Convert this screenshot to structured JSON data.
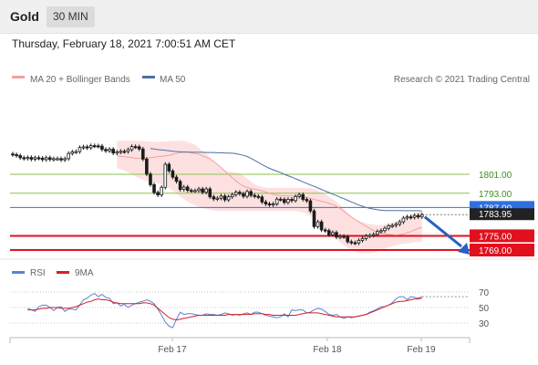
{
  "header": {
    "instrument": "Gold",
    "timeframe": "30 MIN"
  },
  "timestamp": "Thursday, February 18, 2021 7:00:51 AM CET",
  "legend": {
    "ma_bb": "MA 20 + Bollinger Bands",
    "ma50": "MA 50",
    "rsi": "RSI",
    "rsi_ma": "9MA"
  },
  "credit": "Research © 2021 Trading Central",
  "colors": {
    "resistance": "#8bc34a",
    "support": "#e0101d",
    "pivot": "#2f6fe0",
    "ma50": "#4d6fa5",
    "bb": "#f5a0a0",
    "rsi": "#5b82d6",
    "rsi_ma": "#d42020",
    "candle": "#1a1a1a"
  },
  "chart_data": {
    "type": "candlestick",
    "x_ticks": [
      "Feb 17",
      "Feb 18",
      "Feb 19"
    ],
    "ylim": [
      1762,
      1820
    ],
    "levels": [
      {
        "label": "1801.00",
        "value": 1801,
        "kind": "resistance"
      },
      {
        "label": "1793.00",
        "value": 1793,
        "kind": "resistance"
      },
      {
        "label": "1787.00",
        "value": 1787,
        "kind": "pivot"
      },
      {
        "label": "1775.00",
        "value": 1775,
        "kind": "support"
      },
      {
        "label": "1769.00",
        "value": 1769,
        "kind": "support"
      }
    ],
    "last_price": {
      "label": "1783.95",
      "value": 1783.95
    },
    "arrow": {
      "direction": "down",
      "from": 1783,
      "to": 1769
    },
    "close": [
      1809.3,
      1808.9,
      1808.0,
      1807.7,
      1808.1,
      1807.4,
      1808.0,
      1807.8,
      1807.2,
      1808.0,
      1807.3,
      1807.6,
      1807.6,
      1807.1,
      1807.6,
      1809.8,
      1810.5,
      1810.6,
      1812.3,
      1812.6,
      1812.2,
      1813.1,
      1813.0,
      1812.9,
      1811.5,
      1810.9,
      1811.6,
      1810.0,
      1810.4,
      1810.7,
      1810.6,
      1811.4,
      1812.7,
      1812.6,
      1811.7,
      1807.4,
      1801.1,
      1796.6,
      1793.3,
      1792.3,
      1795.5,
      1805.2,
      1802.4,
      1799.8,
      1798.0,
      1794.6,
      1795.6,
      1794.2,
      1794.1,
      1794.1,
      1794.8,
      1793.4,
      1794.8,
      1791.5,
      1790.6,
      1790.9,
      1791.8,
      1790.2,
      1791.5,
      1792.4,
      1793.4,
      1792.8,
      1791.7,
      1793.7,
      1792.1,
      1791.7,
      1791.4,
      1789.3,
      1788.5,
      1788.1,
      1788.5,
      1790.5,
      1790.4,
      1789.1,
      1790.4,
      1789.9,
      1791.6,
      1792.4,
      1790.4,
      1789.8,
      1785.5,
      1778.9,
      1780.9,
      1777.5,
      1777.2,
      1775.5,
      1776.4,
      1774.5,
      1774.8,
      1774.6,
      1772.5,
      1772.1,
      1772.0,
      1773.1,
      1773.9,
      1774.9,
      1775.2,
      1775.6,
      1776.8,
      1777.2,
      1778.2,
      1779.2,
      1779.4,
      1779.9,
      1780.9,
      1782.5,
      1783.0,
      1782.8,
      1783.6,
      1783.0,
      1783.9
    ],
    "ma20": [
      1808.8,
      1808.6,
      1808.4,
      1808.2,
      1808.0,
      1807.8,
      1807.7,
      1807.7,
      1807.8,
      1808.0,
      1808.2,
      1808.4,
      1808.6,
      1808.8,
      1809.0,
      1809.4,
      1809.8,
      1810.2,
      1810.4,
      1810.3,
      1810.1,
      1809.8,
      1809.4,
      1808.8,
      1808.2,
      1807.5,
      1806.4,
      1805.2,
      1803.8,
      1802.4,
      1800.9,
      1799.5,
      1798.2,
      1797.0,
      1796.0,
      1795.4,
      1795.0,
      1794.7,
      1794.4,
      1794.0,
      1793.5,
      1793.0,
      1792.5,
      1792.2,
      1792.0,
      1791.9,
      1791.9,
      1791.8,
      1791.8,
      1791.8,
      1791.5,
      1791.2,
      1790.8,
      1790.4,
      1790.0,
      1789.6,
      1789.2,
      1788.7,
      1788.2,
      1787.5,
      1786.5,
      1785.4,
      1784.2,
      1783.0,
      1781.9,
      1780.9,
      1780.0,
      1779.0,
      1778.1,
      1777.3,
      1776.6,
      1776.1,
      1775.8,
      1775.6,
      1775.5,
      1775.4,
      1775.5,
      1775.8,
      1776.3,
      1776.8,
      1777.5,
      1778.1,
      1778.6
    ],
    "bb_upper": [
      1814.7,
      1815.1,
      1815.5,
      1815.4,
      1815.1,
      1815.1,
      1815.1,
      1815.1,
      1815.1,
      1814.7,
      1814.6,
      1814.6,
      1814.6,
      1815.0,
      1815.1,
      1815.1,
      1815.1,
      1815.1,
      1815.1,
      1815.1,
      1815.1,
      1812.5,
      1812.5,
      1812.5,
      1808.3,
      1808.3,
      1808.3,
      1803.4,
      1802.4,
      1802.1,
      1802.1,
      1802.1,
      1802.0,
      1801.7,
      1801.3,
      1799.4,
      1797.4,
      1796.5,
      1795.6,
      1795.3,
      1795.3,
      1795.3,
      1795.3,
      1795.3,
      1795.3,
      1795.3,
      1795.3,
      1795.3,
      1795.3,
      1795.3,
      1795.3,
      1795.3,
      1795.3,
      1795.0,
      1794.5,
      1794.0,
      1791.8,
      1791.2,
      1790.9,
      1789.8,
      1789.0,
      1785.9,
      1783.7,
      1782.6,
      1781.8,
      1781.1,
      1780.7,
      1780.2,
      1779.8,
      1779.5,
      1779.5,
      1779.5,
      1779.5,
      1779.8,
      1780.4,
      1781.0,
      1781.8,
      1782.5,
      1783.3,
      1784.1,
      1784.9,
      1785.4,
      1785.5
    ],
    "bb_lower": [
      1804.1,
      1803.6,
      1802.8,
      1801.9,
      1800.9,
      1800.1,
      1799.3,
      1798.5,
      1797.9,
      1797.6,
      1797.3,
      1797.3,
      1797.3,
      1796.6,
      1795.5,
      1794.3,
      1792.8,
      1791.3,
      1790.1,
      1789.2,
      1788.5,
      1787.8,
      1787.3,
      1786.8,
      1786.2,
      1785.9,
      1785.6,
      1785.5,
      1785.5,
      1785.5,
      1785.5,
      1785.5,
      1785.5,
      1785.5,
      1785.5,
      1785.5,
      1785.5,
      1785.5,
      1785.5,
      1785.5,
      1785.5,
      1785.5,
      1785.5,
      1785.5,
      1785.5,
      1785.5,
      1785.5,
      1785.5,
      1785.5,
      1785.5,
      1785.3,
      1784.6,
      1783.5,
      1782.3,
      1780.9,
      1779.5,
      1778.0,
      1776.6,
      1775.1,
      1773.6,
      1772.2,
      1770.9,
      1769.7,
      1768.7,
      1768.1,
      1767.6,
      1767.5,
      1767.5,
      1767.5,
      1767.8,
      1768.2,
      1768.8,
      1769.5,
      1770.2,
      1770.7,
      1771.1,
      1771.4,
      1771.6,
      1771.8,
      1772.0,
      1772.2,
      1772.5,
      1772.8
    ],
    "ma50": [
      1811.9,
      1811.7,
      1811.4,
      1811.3,
      1811.1,
      1810.9,
      1810.7,
      1810.6,
      1810.5,
      1810.4,
      1810.4,
      1810.3,
      1810.3,
      1810.3,
      1810.3,
      1810.2,
      1810.2,
      1810.2,
      1810.1,
      1810.1,
      1810.0,
      1810.0,
      1809.9,
      1809.7,
      1809.4,
      1809.0,
      1808.5,
      1807.8,
      1806.9,
      1806.0,
      1805.1,
      1804.3,
      1803.5,
      1802.9,
      1802.3,
      1801.7,
      1801.0,
      1800.4,
      1799.8,
      1799.1,
      1798.5,
      1797.8,
      1797.2,
      1796.5,
      1795.9,
      1795.2,
      1794.6,
      1793.9,
      1793.3,
      1792.6,
      1792.0,
      1791.3,
      1790.7,
      1790.0,
      1789.3,
      1788.7,
      1788.0,
      1787.5,
      1787.0,
      1786.6,
      1786.3,
      1786.0,
      1785.8,
      1785.7,
      1785.7,
      1785.7,
      1785.7,
      1785.7,
      1785.6,
      1785.6,
      1785.6,
      1785.6,
      1785.6,
      1785.5
    ],
    "rsi": {
      "ylim": [
        10,
        90
      ],
      "levels": [
        {
          "label": "70",
          "value": 70
        },
        {
          "label": "50",
          "value": 50
        },
        {
          "label": "30",
          "value": 30
        }
      ],
      "rsi": [
        49,
        47,
        45,
        51,
        53,
        53,
        50,
        46,
        50,
        51,
        45,
        48,
        48,
        47,
        53,
        60,
        62,
        66,
        68,
        64,
        67,
        63,
        62,
        55,
        56,
        52,
        54,
        50,
        53,
        55,
        57,
        58,
        60,
        58,
        55,
        48,
        40,
        31,
        26,
        24,
        35,
        44,
        41,
        42,
        42,
        41,
        40,
        40,
        42,
        41,
        41,
        40,
        41,
        43,
        42,
        40,
        41,
        40,
        42,
        43,
        41,
        44,
        44,
        42,
        40,
        39,
        38,
        37,
        38,
        42,
        38,
        47,
        46,
        47,
        47,
        43,
        44,
        47,
        49,
        48,
        45,
        41,
        40,
        41,
        38,
        36,
        38,
        37,
        38,
        39,
        40,
        41,
        44,
        46,
        48,
        51,
        51,
        53,
        56,
        61,
        64,
        64,
        60,
        64,
        63,
        62,
        64
      ],
      "ma9": [
        47,
        47,
        47,
        48,
        49,
        49,
        50,
        50,
        50,
        49,
        49,
        49,
        50,
        51,
        53,
        55,
        57,
        58,
        60,
        61,
        60,
        60,
        59,
        57,
        56,
        55,
        55,
        55,
        55,
        55,
        55,
        56,
        56,
        55,
        53,
        49,
        45,
        41,
        37,
        35,
        34,
        35,
        36,
        37,
        38,
        39,
        40,
        40,
        40,
        40,
        40,
        40,
        40,
        40,
        41,
        41,
        41,
        41,
        41,
        41,
        41,
        42,
        42,
        42,
        41,
        41,
        40,
        40,
        40,
        40,
        40,
        40,
        40,
        41,
        42,
        43,
        43,
        43,
        43,
        42,
        41,
        40,
        39,
        38,
        38,
        38,
        38,
        38,
        38,
        39,
        40,
        41,
        43,
        45,
        47,
        49,
        51,
        53,
        55,
        57,
        58,
        58,
        59,
        60,
        61,
        61,
        62
      ]
    }
  }
}
